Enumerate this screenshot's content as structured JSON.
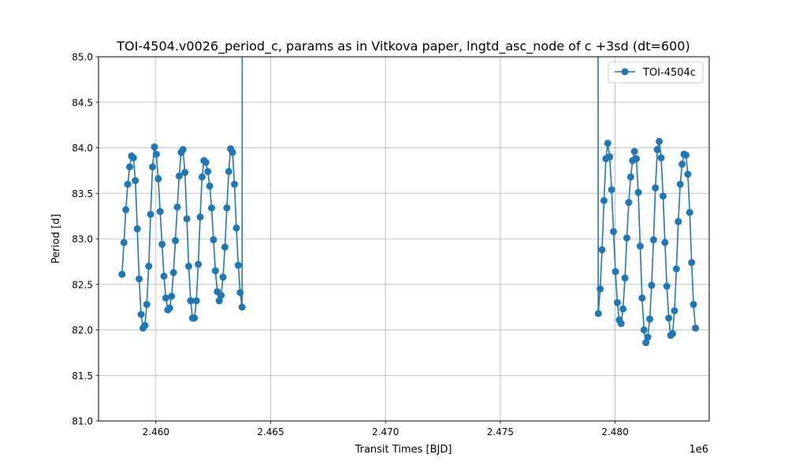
{
  "chart_data": {
    "type": "line",
    "title": "TOI-4504.v0026_period_c, params as in Vitkova paper, lngtd_asc_node of c +3sd (dt=600)",
    "xlabel": "Transit Times [BJD]",
    "ylabel": "Period [d]",
    "x_offset_label": "1e6",
    "xlim": [
      2457500,
      2484100
    ],
    "ylim": [
      81.0,
      85.0
    ],
    "x_ticks": [
      2460000,
      2465000,
      2470000,
      2475000,
      2480000
    ],
    "x_tick_labels": [
      "2.460",
      "2.465",
      "2.470",
      "2.475",
      "2.480"
    ],
    "y_ticks": [
      81.0,
      81.5,
      82.0,
      82.5,
      83.0,
      83.5,
      84.0,
      84.5,
      85.0
    ],
    "y_tick_labels": [
      "81.0",
      "81.5",
      "82.0",
      "82.5",
      "83.0",
      "83.5",
      "84.0",
      "84.5",
      "85.0"
    ],
    "grid": true,
    "legend_position": "top-right",
    "color": "#1f77b4",
    "series": [
      {
        "name": "TOI-4504c",
        "segments": [
          [
            [
              2458525,
              82.61
            ],
            [
              2458608,
              82.96
            ],
            [
              2458691,
              83.32
            ],
            [
              2458774,
              83.6
            ],
            [
              2458857,
              83.79
            ],
            [
              2458940,
              83.91
            ],
            [
              2459023,
              83.89
            ],
            [
              2459106,
              83.64
            ],
            [
              2459189,
              83.11
            ],
            [
              2459272,
              82.56
            ],
            [
              2459355,
              82.17
            ],
            [
              2459438,
              82.02
            ],
            [
              2459521,
              82.05
            ],
            [
              2459604,
              82.28
            ],
            [
              2459687,
              82.7
            ],
            [
              2459770,
              83.27
            ],
            [
              2459853,
              83.79
            ],
            [
              2459936,
              84.01
            ],
            [
              2460019,
              83.93
            ],
            [
              2460102,
              83.66
            ],
            [
              2460185,
              83.3
            ],
            [
              2460268,
              82.94
            ],
            [
              2460351,
              82.59
            ],
            [
              2460434,
              82.35
            ],
            [
              2460517,
              82.22
            ],
            [
              2460600,
              82.24
            ],
            [
              2460683,
              82.37
            ],
            [
              2460766,
              82.63
            ],
            [
              2460849,
              82.98
            ],
            [
              2460932,
              83.35
            ],
            [
              2461015,
              83.69
            ],
            [
              2461098,
              83.95
            ],
            [
              2461181,
              83.98
            ],
            [
              2461264,
              83.73
            ],
            [
              2461347,
              83.22
            ],
            [
              2461430,
              82.7
            ],
            [
              2461513,
              82.32
            ],
            [
              2461596,
              82.13
            ],
            [
              2461679,
              82.13
            ],
            [
              2461762,
              82.32
            ],
            [
              2461845,
              82.72
            ],
            [
              2461928,
              83.24
            ],
            [
              2462011,
              83.68
            ],
            [
              2462094,
              83.86
            ],
            [
              2462177,
              83.84
            ],
            [
              2462260,
              83.74
            ],
            [
              2462343,
              83.58
            ],
            [
              2462426,
              83.34
            ],
            [
              2462509,
              82.99
            ],
            [
              2462592,
              82.65
            ],
            [
              2462675,
              82.42
            ],
            [
              2462758,
              82.32
            ],
            [
              2462841,
              82.38
            ],
            [
              2462924,
              82.58
            ],
            [
              2463007,
              82.91
            ],
            [
              2463090,
              83.34
            ],
            [
              2463173,
              83.74
            ],
            [
              2463256,
              83.99
            ],
            [
              2463339,
              83.95
            ],
            [
              2463422,
              83.6
            ],
            [
              2463505,
              83.12
            ],
            [
              2463588,
              82.71
            ],
            [
              2463671,
              82.41
            ],
            [
              2463754,
              82.25
            ],
            [
              2463761,
              85.6
            ]
          ],
          [
            [
              2479260,
              85.6
            ],
            [
              2479268,
              82.18
            ],
            [
              2479351,
              82.45
            ],
            [
              2479434,
              82.88
            ],
            [
              2479517,
              83.42
            ],
            [
              2479600,
              83.88
            ],
            [
              2479683,
              84.05
            ],
            [
              2479766,
              83.9
            ],
            [
              2479849,
              83.54
            ],
            [
              2479932,
              83.08
            ],
            [
              2480015,
              82.64
            ],
            [
              2480098,
              82.3
            ],
            [
              2480181,
              82.11
            ],
            [
              2480264,
              82.07
            ],
            [
              2480347,
              82.23
            ],
            [
              2480430,
              82.57
            ],
            [
              2480513,
              83.01
            ],
            [
              2480596,
              83.4
            ],
            [
              2480679,
              83.68
            ],
            [
              2480762,
              83.86
            ],
            [
              2480845,
              83.96
            ],
            [
              2480928,
              83.88
            ],
            [
              2481011,
              83.51
            ],
            [
              2481094,
              82.92
            ],
            [
              2481177,
              82.35
            ],
            [
              2481260,
              82.0
            ],
            [
              2481343,
              81.86
            ],
            [
              2481426,
              81.92
            ],
            [
              2481509,
              82.12
            ],
            [
              2481592,
              82.49
            ],
            [
              2481675,
              82.99
            ],
            [
              2481758,
              83.56
            ],
            [
              2481841,
              83.98
            ],
            [
              2481924,
              84.07
            ],
            [
              2482007,
              83.89
            ],
            [
              2482090,
              83.47
            ],
            [
              2482173,
              82.96
            ],
            [
              2482256,
              82.48
            ],
            [
              2482339,
              82.13
            ],
            [
              2482422,
              81.94
            ],
            [
              2482505,
              81.96
            ],
            [
              2482588,
              82.21
            ],
            [
              2482671,
              82.67
            ],
            [
              2482754,
              83.19
            ],
            [
              2482837,
              83.6
            ],
            [
              2482920,
              83.82
            ],
            [
              2483003,
              83.93
            ],
            [
              2483086,
              83.92
            ],
            [
              2483169,
              83.71
            ],
            [
              2483252,
              83.29
            ],
            [
              2483335,
              82.74
            ],
            [
              2483418,
              82.28
            ],
            [
              2483501,
              82.02
            ]
          ]
        ],
        "markers": [
          [
            2458525,
            82.61
          ],
          [
            2458608,
            82.96
          ],
          [
            2458691,
            83.32
          ],
          [
            2458774,
            83.6
          ],
          [
            2458857,
            83.79
          ],
          [
            2458940,
            83.91
          ],
          [
            2459023,
            83.89
          ],
          [
            2459106,
            83.64
          ],
          [
            2459189,
            83.11
          ],
          [
            2459272,
            82.56
          ],
          [
            2459355,
            82.17
          ],
          [
            2459438,
            82.02
          ],
          [
            2459521,
            82.05
          ],
          [
            2459604,
            82.28
          ],
          [
            2459687,
            82.7
          ],
          [
            2459770,
            83.27
          ],
          [
            2459853,
            83.79
          ],
          [
            2459936,
            84.01
          ],
          [
            2460019,
            83.93
          ],
          [
            2460102,
            83.66
          ],
          [
            2460185,
            83.3
          ],
          [
            2460268,
            82.94
          ],
          [
            2460351,
            82.59
          ],
          [
            2460434,
            82.35
          ],
          [
            2460517,
            82.22
          ],
          [
            2460600,
            82.24
          ],
          [
            2460683,
            82.37
          ],
          [
            2460766,
            82.63
          ],
          [
            2460849,
            82.98
          ],
          [
            2460932,
            83.35
          ],
          [
            2461015,
            83.69
          ],
          [
            2461098,
            83.95
          ],
          [
            2461181,
            83.98
          ],
          [
            2461264,
            83.73
          ],
          [
            2461347,
            83.22
          ],
          [
            2461430,
            82.7
          ],
          [
            2461513,
            82.32
          ],
          [
            2461596,
            82.13
          ],
          [
            2461679,
            82.13
          ],
          [
            2461762,
            82.32
          ],
          [
            2461845,
            82.72
          ],
          [
            2461928,
            83.24
          ],
          [
            2462011,
            83.68
          ],
          [
            2462094,
            83.86
          ],
          [
            2462177,
            83.84
          ],
          [
            2462260,
            83.74
          ],
          [
            2462343,
            83.58
          ],
          [
            2462426,
            83.34
          ],
          [
            2462509,
            82.99
          ],
          [
            2462592,
            82.65
          ],
          [
            2462675,
            82.42
          ],
          [
            2462758,
            82.32
          ],
          [
            2462841,
            82.38
          ],
          [
            2462924,
            82.58
          ],
          [
            2463007,
            82.91
          ],
          [
            2463090,
            83.34
          ],
          [
            2463173,
            83.74
          ],
          [
            2463256,
            83.99
          ],
          [
            2463339,
            83.95
          ],
          [
            2463422,
            83.6
          ],
          [
            2463505,
            83.12
          ],
          [
            2463588,
            82.71
          ],
          [
            2463671,
            82.41
          ],
          [
            2463754,
            82.25
          ],
          [
            2479268,
            82.18
          ],
          [
            2479351,
            82.45
          ],
          [
            2479434,
            82.88
          ],
          [
            2479517,
            83.42
          ],
          [
            2479600,
            83.88
          ],
          [
            2479683,
            84.05
          ],
          [
            2479766,
            83.9
          ],
          [
            2479849,
            83.54
          ],
          [
            2479932,
            83.08
          ],
          [
            2480015,
            82.64
          ],
          [
            2480098,
            82.3
          ],
          [
            2480181,
            82.11
          ],
          [
            2480264,
            82.07
          ],
          [
            2480347,
            82.23
          ],
          [
            2480430,
            82.57
          ],
          [
            2480513,
            83.01
          ],
          [
            2480596,
            83.4
          ],
          [
            2480679,
            83.68
          ],
          [
            2480762,
            83.86
          ],
          [
            2480845,
            83.96
          ],
          [
            2480928,
            83.88
          ],
          [
            2481011,
            83.51
          ],
          [
            2481094,
            82.92
          ],
          [
            2481177,
            82.35
          ],
          [
            2481260,
            82.0
          ],
          [
            2481343,
            81.86
          ],
          [
            2481426,
            81.92
          ],
          [
            2481509,
            82.12
          ],
          [
            2481592,
            82.49
          ],
          [
            2481675,
            82.99
          ],
          [
            2481758,
            83.56
          ],
          [
            2481841,
            83.98
          ],
          [
            2481924,
            84.07
          ],
          [
            2482007,
            83.89
          ],
          [
            2482090,
            83.47
          ],
          [
            2482173,
            82.96
          ],
          [
            2482256,
            82.48
          ],
          [
            2482339,
            82.13
          ],
          [
            2482422,
            81.94
          ],
          [
            2482505,
            81.96
          ],
          [
            2482588,
            82.21
          ],
          [
            2482671,
            82.67
          ],
          [
            2482754,
            83.19
          ],
          [
            2482837,
            83.6
          ],
          [
            2482920,
            83.82
          ],
          [
            2483003,
            83.93
          ],
          [
            2483086,
            83.92
          ],
          [
            2483169,
            83.71
          ],
          [
            2483252,
            83.29
          ],
          [
            2483335,
            82.74
          ],
          [
            2483418,
            82.28
          ],
          [
            2483501,
            82.02
          ]
        ]
      }
    ]
  }
}
